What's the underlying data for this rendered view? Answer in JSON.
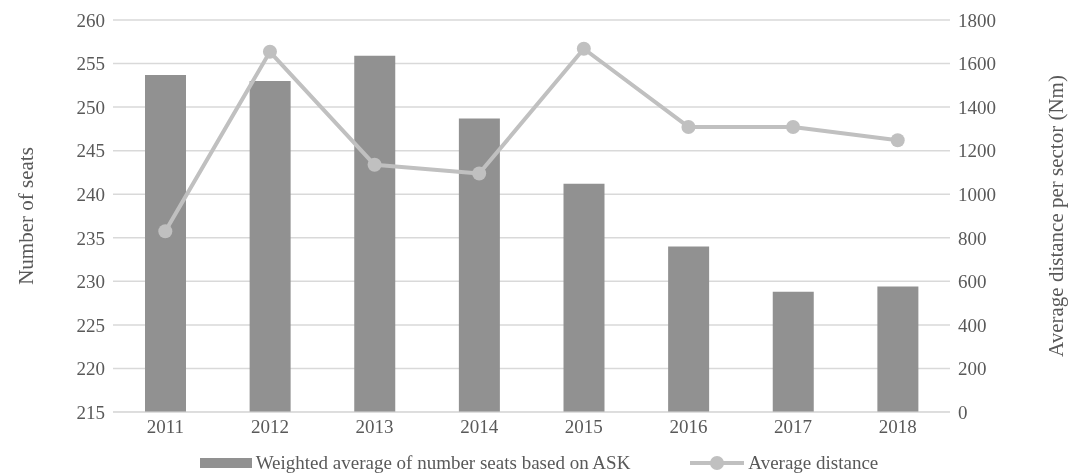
{
  "chart_data": {
    "type": "bar",
    "categories": [
      "2011",
      "2012",
      "2013",
      "2014",
      "2015",
      "2016",
      "2017",
      "2018"
    ],
    "ylabel": "Number of seats",
    "y2label": "Average distance per sector (Nm)",
    "ylim": [
      215,
      260
    ],
    "yticks": [
      215,
      220,
      225,
      230,
      235,
      240,
      245,
      250,
      255,
      260
    ],
    "y2lim": [
      0,
      1800
    ],
    "y2ticks": [
      0,
      200,
      400,
      600,
      800,
      1000,
      1200,
      1400,
      1600,
      1800
    ],
    "grid": "y",
    "legend": "bottom",
    "marker": "circle",
    "line_style": "solid",
    "series": [
      {
        "name": "Weighted average of number seats based on ASK",
        "color": "#919191",
        "values": [
          253.7,
          253.0,
          255.9,
          248.7,
          241.2,
          234.0,
          228.8,
          229.4
        ]
      },
      {
        "name": "Average distance",
        "type": "line",
        "axis": "y2",
        "color": "#c0c0c0",
        "values": [
          830,
          1654,
          1135,
          1095,
          1668,
          1309,
          1309,
          1248
        ]
      }
    ]
  }
}
